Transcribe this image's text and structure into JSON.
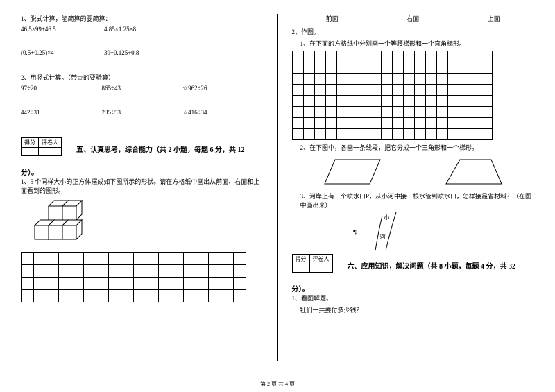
{
  "leftCol": {
    "q1": {
      "title": "1、脱式计算，能简算的要简算：",
      "row1": [
        "46.5×99+46.5",
        "4.85×1.25×8"
      ],
      "row2": [
        "(0.5+0.25)×4",
        "39÷0.125÷0.8"
      ]
    },
    "q2": {
      "title": "2、用竖式计算。（带☆的要验算）",
      "row1": [
        "97÷20",
        "865÷43",
        "☆962÷26"
      ],
      "row2": [
        "442÷31",
        "235÷53",
        "☆416÷34"
      ]
    },
    "scoreLabels": [
      "得分",
      "评卷人"
    ],
    "section5": "五、认真思考，综合能力（共 2 小题，每题 6 分，共 12",
    "fen": "分）。",
    "q5_1": "1、5 个同样大小的正方体摆成如下图所示的形状。请在方格纸中画出从前面、右面和上面看到的图形。"
  },
  "rightCol": {
    "views": [
      "前面",
      "右面",
      "上面"
    ],
    "q2title": "2、作图。",
    "q2_1": "1、在下面的方格纸中分别画一个等腰梯形和一个直角梯形。",
    "q2_2": "2、在下图中，各画一条线段，把它分成一个三角形和一个梯形。",
    "q2_3": "3、河岸上有一个喷水口P，从小河中接一根水管到喷水口，怎样接最省材料？（在图中画出来）",
    "labels": {
      "p": "P",
      "xiao": "小",
      "he": "河"
    },
    "scoreLabels": [
      "得分",
      "评卷人"
    ],
    "section6": "六、应用知识，解决问题（共 8 小题，每题 4 分，共 32",
    "fen": "分）。",
    "q6_1": "1、看图解题。",
    "q6_1b": "牡们一共要付多少钱？"
  },
  "footer": "第 2 页 共 4 页",
  "grids": {
    "leftGrid": {
      "rows": 4,
      "cols": 18
    },
    "rightGrid": {
      "rows": 8,
      "cols": 18
    }
  }
}
